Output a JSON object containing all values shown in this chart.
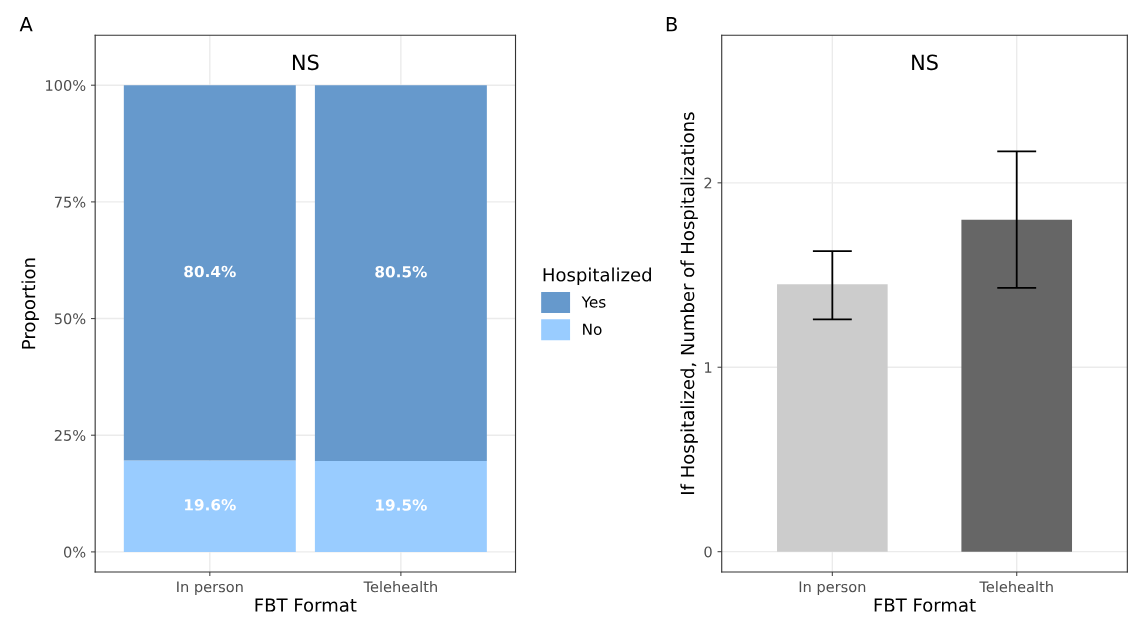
{
  "chart_data": [
    {
      "type": "bar",
      "title": "A",
      "stacked": true,
      "categories": [
        "In person",
        "Telehealth"
      ],
      "xlabel": "FBT Format",
      "ylabel": "Proportion",
      "legend_title": "Hospitalized",
      "legend": "right",
      "grid": true,
      "series": [
        {
          "name": "No",
          "color": "#99ccff",
          "values": [
            19.6,
            19.5
          ],
          "value_labels": [
            "19.6%",
            "19.5%"
          ]
        },
        {
          "name": "Yes",
          "color": "#6699cc",
          "values": [
            80.4,
            80.5
          ],
          "value_labels": [
            "80.4%",
            "80.5%"
          ]
        }
      ],
      "ylim": [
        -4.3,
        110.7
      ],
      "yticks": [
        {
          "value": 0,
          "label": "0%"
        },
        {
          "value": 25,
          "label": "25%"
        },
        {
          "value": 50,
          "label": "50%"
        },
        {
          "value": 75,
          "label": "75%"
        },
        {
          "value": 100,
          "label": "100%"
        }
      ],
      "annotations": [
        "NS"
      ]
    },
    {
      "type": "bar",
      "title": "B",
      "categories": [
        "In person",
        "Telehealth"
      ],
      "xlabel": "FBT Format",
      "ylabel": "If Hospitalized, Number of Hospitalizations",
      "grid": true,
      "values": [
        1.45,
        1.8
      ],
      "colors": [
        "#cccccc",
        "#666666"
      ],
      "errors": [
        [
          1.26,
          1.63
        ],
        [
          1.43,
          2.17
        ]
      ],
      "ylim": [
        -0.11,
        2.8
      ],
      "yticks": [
        0,
        1,
        2
      ],
      "annotations": [
        "NS"
      ]
    }
  ]
}
